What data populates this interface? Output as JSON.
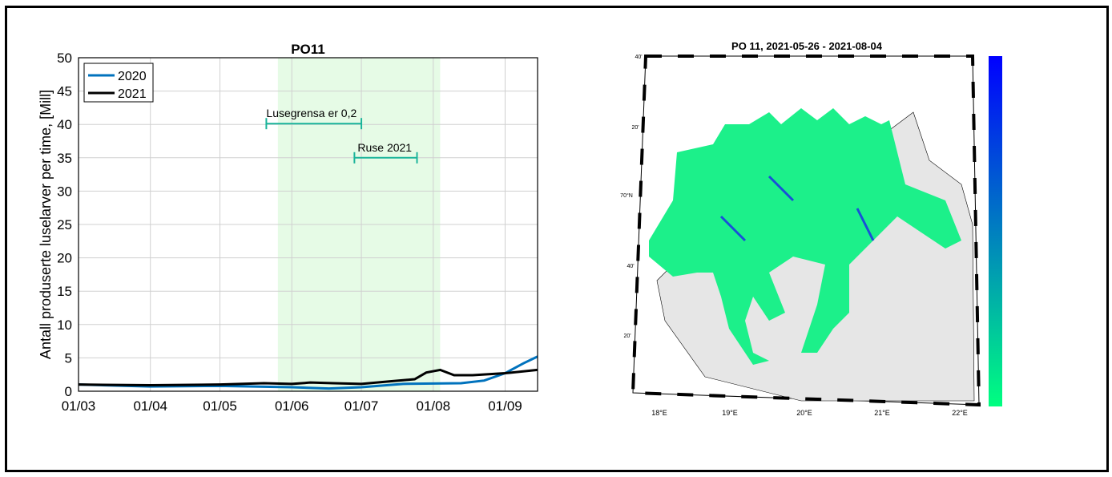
{
  "chart_data": [
    {
      "type": "line",
      "title": "PO11",
      "ylabel": "Antall produserte luselarver per time, [Mill]",
      "xlabel": "",
      "ylim": [
        0,
        50
      ],
      "yticks": [
        0,
        5,
        10,
        15,
        20,
        25,
        30,
        35,
        40,
        45,
        50
      ],
      "xtick_labels": [
        "01/03",
        "01/04",
        "01/05",
        "01/06",
        "01/07",
        "01/08",
        "01/09"
      ],
      "xtick_days": [
        0,
        31,
        61,
        92,
        122,
        153,
        184
      ],
      "xlim_days": [
        0,
        198
      ],
      "x_unit": "days since 01/03",
      "grid": true,
      "legend_position": "top-left",
      "shaded_period": {
        "start_day": 86,
        "end_day": 156,
        "color": "#e6fbe6"
      },
      "annotations": [
        {
          "label": "Lusegrensa er 0,2",
          "start_day": 81,
          "end_day": 122,
          "y": 40
        },
        {
          "label": "Ruse 2021",
          "start_day": 119,
          "end_day": 146,
          "y": 35
        }
      ],
      "series": [
        {
          "name": "2020",
          "color": "#0072bd",
          "x": [
            0,
            31,
            61,
            92,
            108,
            122,
            140,
            165,
            175,
            184,
            192,
            198
          ],
          "y": [
            1.0,
            0.7,
            0.8,
            0.6,
            0.4,
            0.6,
            1.1,
            1.2,
            1.6,
            2.7,
            4.2,
            5.2
          ]
        },
        {
          "name": "2021",
          "color": "#000000",
          "x": [
            0,
            31,
            61,
            80,
            92,
            100,
            110,
            122,
            135,
            145,
            150,
            156,
            162,
            170,
            184,
            198
          ],
          "y": [
            1.0,
            0.9,
            1.0,
            1.2,
            1.1,
            1.3,
            1.2,
            1.1,
            1.5,
            1.8,
            2.8,
            3.2,
            2.4,
            2.4,
            2.7,
            3.2
          ]
        }
      ]
    },
    {
      "type": "map",
      "title": "PO 11, 2021-05-26 - 2021-08-04",
      "lat_labels": [
        "40'",
        "20'",
        "70°N",
        "40'",
        "20'"
      ],
      "lon_labels": [
        "18°E",
        "19°E",
        "20°E",
        "21°E",
        "22°E"
      ],
      "colorbar": {
        "top_color": "#0000ff",
        "bottom_color": "#00ff80"
      }
    }
  ]
}
